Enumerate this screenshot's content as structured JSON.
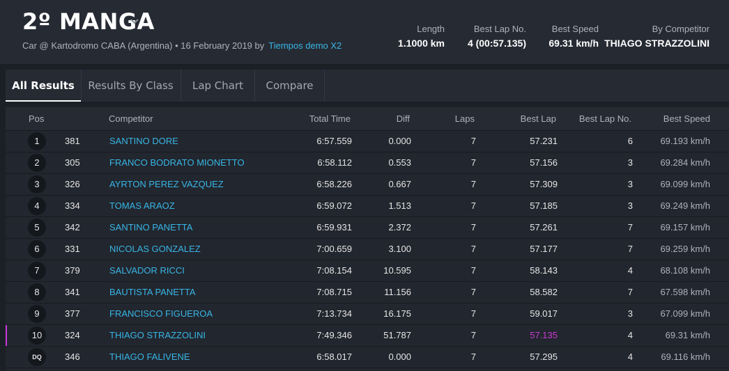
{
  "header": {
    "title": "2º MANGA",
    "subtitle_text": "Car @ Kartodromo CABA (Argentina) • 16 February 2019 by",
    "subtitle_link": "Tiempos demo X2",
    "stats": [
      {
        "label": "Length",
        "value": "1.1000 km"
      },
      {
        "label": "Best Lap No.",
        "value": "4 (00:57.135)"
      },
      {
        "label": "Best Speed",
        "value": "69.31 km/h"
      },
      {
        "label": "By Competitor",
        "value": "THIAGO STRAZZOLINI"
      }
    ]
  },
  "tabs": [
    "All Results",
    "Results By Class",
    "Lap Chart",
    "Compare"
  ],
  "columns": [
    "Pos",
    "Competitor",
    "Total Time",
    "Diff",
    "Laps",
    "Best Lap",
    "Best Lap No.",
    "Best Speed"
  ],
  "rows": [
    {
      "pos": "1",
      "num": "381",
      "name": "SANTINO DORE",
      "total": "6:57.559",
      "diff": "0.000",
      "laps": "7",
      "best": "57.231",
      "bestno": "6",
      "speed": "69.193 km/h"
    },
    {
      "pos": "2",
      "num": "305",
      "name": "FRANCO BODRATO MIONETTO",
      "total": "6:58.112",
      "diff": "0.553",
      "laps": "7",
      "best": "57.156",
      "bestno": "3",
      "speed": "69.284 km/h"
    },
    {
      "pos": "3",
      "num": "326",
      "name": "AYRTON PEREZ VAZQUEZ",
      "total": "6:58.226",
      "diff": "0.667",
      "laps": "7",
      "best": "57.309",
      "bestno": "3",
      "speed": "69.099 km/h"
    },
    {
      "pos": "4",
      "num": "334",
      "name": "TOMAS ARAOZ",
      "total": "6:59.072",
      "diff": "1.513",
      "laps": "7",
      "best": "57.185",
      "bestno": "3",
      "speed": "69.249 km/h"
    },
    {
      "pos": "5",
      "num": "342",
      "name": "SANTINO PANETTA",
      "total": "6:59.931",
      "diff": "2.372",
      "laps": "7",
      "best": "57.261",
      "bestno": "7",
      "speed": "69.157 km/h"
    },
    {
      "pos": "6",
      "num": "331",
      "name": "NICOLAS GONZALEZ",
      "total": "7:00.659",
      "diff": "3.100",
      "laps": "7",
      "best": "57.177",
      "bestno": "7",
      "speed": "69.259 km/h"
    },
    {
      "pos": "7",
      "num": "379",
      "name": "SALVADOR RICCI",
      "total": "7:08.154",
      "diff": "10.595",
      "laps": "7",
      "best": "58.143",
      "bestno": "4",
      "speed": "68.108 km/h"
    },
    {
      "pos": "8",
      "num": "341",
      "name": "BAUTISTA PANETTA",
      "total": "7:08.715",
      "diff": "11.156",
      "laps": "7",
      "best": "58.582",
      "bestno": "7",
      "speed": "67.598 km/h"
    },
    {
      "pos": "9",
      "num": "377",
      "name": "FRANCISCO FIGUEROA",
      "total": "7:13.734",
      "diff": "16.175",
      "laps": "7",
      "best": "59.017",
      "bestno": "3",
      "speed": "67.099 km/h"
    },
    {
      "pos": "10",
      "num": "324",
      "name": "THIAGO STRAZZOLINI",
      "total": "7:49.346",
      "diff": "51.787",
      "laps": "7",
      "best": "57.135",
      "bestno": "4",
      "speed": "69.31 km/h",
      "best_lap_overall": true
    },
    {
      "pos": "DQ",
      "num": "346",
      "name": "THIAGO FALIVENE",
      "total": "6:58.017",
      "diff": "0.000",
      "laps": "7",
      "best": "57.295",
      "bestno": "4",
      "speed": "69.116 km/h"
    }
  ],
  "colors": {
    "accent": "#38b6e6",
    "best_lap": "#c93bd6",
    "background": "#1b1f26"
  }
}
